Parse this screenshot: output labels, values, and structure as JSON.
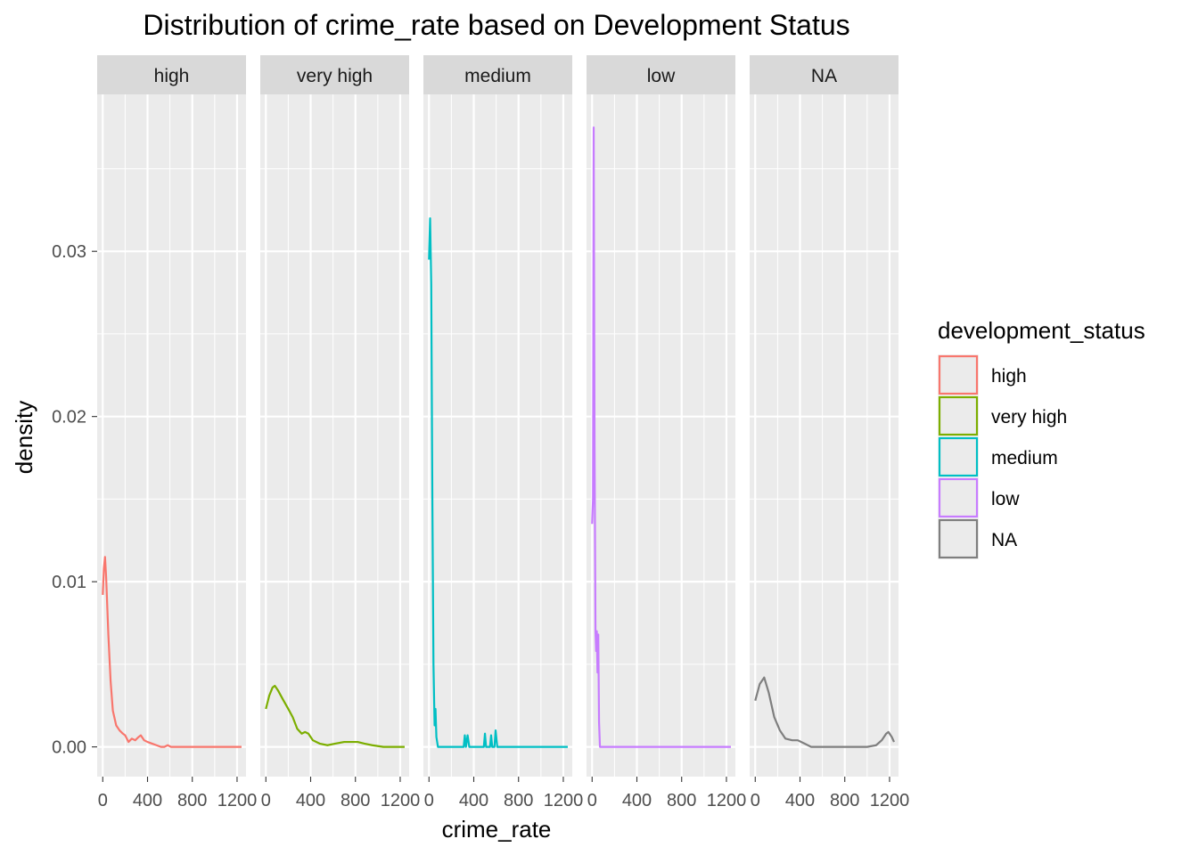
{
  "chart_data": {
    "type": "line",
    "title": "Distribution of crime_rate based on Development Status",
    "xlabel": "crime_rate",
    "ylabel": "density",
    "xlim": [
      -50,
      1280
    ],
    "ylim": [
      -0.0018,
      0.0395
    ],
    "x_ticks": [
      0,
      400,
      800,
      1200
    ],
    "x_tick_labels": [
      "0",
      "400",
      "800",
      "1200"
    ],
    "y_ticks": [
      0,
      0.01,
      0.02,
      0.03
    ],
    "y_tick_labels": [
      "0.00",
      "0.01",
      "0.02",
      "0.03"
    ],
    "grid": true,
    "legend": {
      "title": "development_status",
      "position": "right",
      "entries": [
        "high",
        "very high",
        "medium",
        "low",
        "NA"
      ]
    },
    "series": [
      {
        "name": "high",
        "color": "#F8766D",
        "points": [
          [
            0,
            0.0092
          ],
          [
            10,
            0.0108
          ],
          [
            20,
            0.0115
          ],
          [
            30,
            0.0103
          ],
          [
            50,
            0.0068
          ],
          [
            70,
            0.004
          ],
          [
            90,
            0.0022
          ],
          [
            120,
            0.0013
          ],
          [
            150,
            0.001
          ],
          [
            180,
            0.0008
          ],
          [
            200,
            0.0007
          ],
          [
            230,
            0.0003
          ],
          [
            260,
            0.0005
          ],
          [
            290,
            0.0004
          ],
          [
            320,
            0.0006
          ],
          [
            340,
            0.0007
          ],
          [
            370,
            0.0004
          ],
          [
            400,
            0.0003
          ],
          [
            440,
            0.0002
          ],
          [
            480,
            0.0001
          ],
          [
            520,
            0.0
          ],
          [
            550,
            0.0
          ],
          [
            580,
            0.0001
          ],
          [
            610,
            0.0
          ],
          [
            700,
            0.0
          ],
          [
            1240,
            0.0
          ]
        ]
      },
      {
        "name": "very high",
        "color": "#7CAE00",
        "points": [
          [
            0,
            0.0023
          ],
          [
            30,
            0.0031
          ],
          [
            60,
            0.0036
          ],
          [
            80,
            0.0037
          ],
          [
            110,
            0.0034
          ],
          [
            150,
            0.0029
          ],
          [
            200,
            0.0023
          ],
          [
            240,
            0.0018
          ],
          [
            280,
            0.0011
          ],
          [
            320,
            0.0008
          ],
          [
            350,
            0.0009
          ],
          [
            380,
            0.0008
          ],
          [
            420,
            0.0004
          ],
          [
            480,
            0.0002
          ],
          [
            550,
            0.0001
          ],
          [
            620,
            0.0002
          ],
          [
            700,
            0.0003
          ],
          [
            780,
            0.0003
          ],
          [
            820,
            0.0003
          ],
          [
            880,
            0.0002
          ],
          [
            950,
            0.0001
          ],
          [
            1050,
            0.0
          ],
          [
            1240,
            0.0
          ]
        ]
      },
      {
        "name": "medium",
        "color": "#00BFC4",
        "points": [
          [
            0,
            0.0295
          ],
          [
            10,
            0.032
          ],
          [
            20,
            0.028
          ],
          [
            30,
            0.015
          ],
          [
            40,
            0.005
          ],
          [
            50,
            0.0013
          ],
          [
            58,
            0.0023
          ],
          [
            66,
            0.0006
          ],
          [
            80,
            0.0
          ],
          [
            310,
            0.0
          ],
          [
            320,
            0.0007
          ],
          [
            330,
            0.0
          ],
          [
            345,
            0.0007
          ],
          [
            360,
            0.0
          ],
          [
            490,
            0.0
          ],
          [
            500,
            0.0008
          ],
          [
            510,
            0.0
          ],
          [
            545,
            0.0
          ],
          [
            555,
            0.0007
          ],
          [
            565,
            0.0
          ],
          [
            585,
            0.0
          ],
          [
            595,
            0.001
          ],
          [
            610,
            0.0
          ],
          [
            1240,
            0.0
          ]
        ]
      },
      {
        "name": "low",
        "color": "#C77CFF",
        "points": [
          [
            0,
            0.0135
          ],
          [
            8,
            0.015
          ],
          [
            14,
            0.0375
          ],
          [
            22,
            0.018
          ],
          [
            30,
            0.007
          ],
          [
            36,
            0.0058
          ],
          [
            42,
            0.007
          ],
          [
            48,
            0.0045
          ],
          [
            55,
            0.0068
          ],
          [
            62,
            0.0015
          ],
          [
            70,
            0.0
          ],
          [
            1240,
            0.0
          ]
        ]
      },
      {
        "name": "NA",
        "color": "#7F7F7F",
        "points": [
          [
            0,
            0.0028
          ],
          [
            40,
            0.0038
          ],
          [
            80,
            0.0042
          ],
          [
            120,
            0.0033
          ],
          [
            170,
            0.0018
          ],
          [
            220,
            0.001
          ],
          [
            270,
            0.0005
          ],
          [
            330,
            0.0004
          ],
          [
            380,
            0.0004
          ],
          [
            440,
            0.0002
          ],
          [
            500,
            0.0
          ],
          [
            600,
            0.0
          ],
          [
            800,
            0.0
          ],
          [
            1000,
            0.0
          ],
          [
            1080,
            0.0001
          ],
          [
            1130,
            0.0004
          ],
          [
            1170,
            0.0008
          ],
          [
            1190,
            0.0009
          ],
          [
            1220,
            0.0006
          ],
          [
            1240,
            0.0003
          ]
        ]
      }
    ]
  }
}
